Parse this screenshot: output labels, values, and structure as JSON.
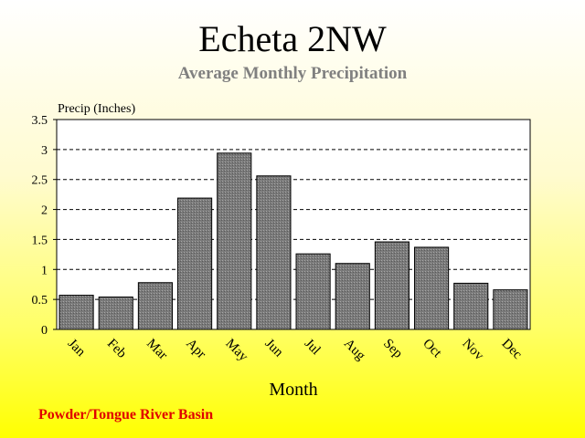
{
  "chart_data": {
    "type": "bar",
    "title": "Echeta 2NW",
    "subtitle": "Average Monthly Precipitation",
    "ylabel": "Precip (Inches)",
    "xlabel": "Month",
    "categories": [
      "Jan",
      "Feb",
      "Mar",
      "Apr",
      "May",
      "Jun",
      "Jul",
      "Aug",
      "Sep",
      "Oct",
      "Nov",
      "Dec"
    ],
    "values": [
      0.57,
      0.54,
      0.78,
      2.19,
      2.94,
      2.56,
      1.26,
      1.1,
      1.46,
      1.37,
      0.77,
      0.66
    ],
    "ylim": [
      0,
      3.5
    ],
    "yticks": [
      "0",
      "0.5",
      "1",
      "1.5",
      "2",
      "2.5",
      "3",
      "3.5"
    ],
    "grid": true,
    "gridStyle": "dashed",
    "barColor": "#808080",
    "footer": "Powder/Tongue River Basin",
    "footerColor": "#e00000"
  }
}
